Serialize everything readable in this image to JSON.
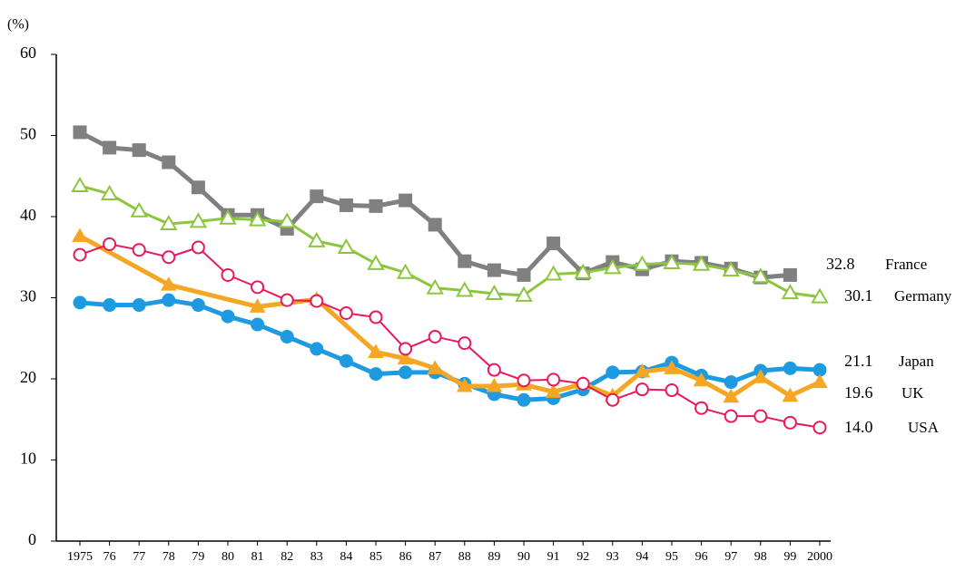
{
  "chart_data": {
    "type": "line",
    "y_label": "(%)",
    "ylim": [
      0,
      60
    ],
    "yticks": [
      0,
      10,
      20,
      30,
      40,
      50,
      60
    ],
    "xlim": [
      1975,
      2000
    ],
    "xticks": [
      1975,
      {
        "value": 1976,
        "label": "76"
      },
      {
        "value": 1977,
        "label": "77"
      },
      {
        "value": 1978,
        "label": "78"
      },
      {
        "value": 1979,
        "label": "79"
      },
      {
        "value": 1980,
        "label": "80"
      },
      {
        "value": 1981,
        "label": "81"
      },
      {
        "value": 1982,
        "label": "82"
      },
      {
        "value": 1983,
        "label": "83"
      },
      {
        "value": 1984,
        "label": "84"
      },
      {
        "value": 1985,
        "label": "85"
      },
      {
        "value": 1986,
        "label": "86"
      },
      {
        "value": 1987,
        "label": "87"
      },
      {
        "value": 1988,
        "label": "88"
      },
      {
        "value": 1989,
        "label": "89"
      },
      {
        "value": 1990,
        "label": "90"
      },
      {
        "value": 1991,
        "label": "91"
      },
      {
        "value": 1992,
        "label": "92"
      },
      {
        "value": 1993,
        "label": "93"
      },
      {
        "value": 1994,
        "label": "94"
      },
      {
        "value": 1995,
        "label": "95"
      },
      {
        "value": 1996,
        "label": "96"
      },
      {
        "value": 1997,
        "label": "97"
      },
      {
        "value": 1998,
        "label": "98"
      },
      {
        "value": 1999,
        "label": "99"
      },
      2000
    ],
    "grid": false,
    "series": [
      {
        "name": "France",
        "color": "#808080",
        "marker": "square",
        "filled": true,
        "x": [
          1975,
          1976,
          1977,
          1978,
          1979,
          1980,
          1981,
          1982,
          1983,
          1984,
          1985,
          1986,
          1987,
          1988,
          1989,
          1990,
          1991,
          1992,
          1993,
          1994,
          1995,
          1996,
          1997,
          1998,
          1999
        ],
        "values": [
          50.4,
          48.5,
          48.2,
          46.7,
          43.6,
          40.2,
          40.2,
          38.5,
          42.5,
          41.4,
          41.3,
          42.0,
          39.0,
          34.5,
          33.4,
          32.8,
          36.7,
          33.0,
          34.4,
          33.5,
          34.5,
          34.3,
          33.6,
          32.5,
          32.8
        ]
      },
      {
        "name": "Germany",
        "color": "#8cc63f",
        "marker": "triangle",
        "filled": false,
        "x": [
          1975,
          1976,
          1977,
          1978,
          1979,
          1980,
          1981,
          1982,
          1983,
          1984,
          1985,
          1986,
          1987,
          1988,
          1989,
          1990,
          1991,
          1992,
          1993,
          1994,
          1995,
          1996,
          1997,
          1998,
          1999,
          2000
        ],
        "values": [
          43.8,
          42.8,
          40.7,
          39.1,
          39.4,
          39.8,
          39.6,
          39.4,
          37.0,
          36.2,
          34.2,
          33.1,
          31.2,
          30.9,
          30.5,
          30.3,
          32.9,
          33.1,
          33.7,
          34.1,
          34.3,
          34.1,
          33.4,
          32.6,
          30.6,
          30.1
        ]
      },
      {
        "name": "Japan",
        "color": "#1e9be0",
        "marker": "circle",
        "filled": true,
        "x": [
          1975,
          1976,
          1977,
          1978,
          1979,
          1980,
          1981,
          1982,
          1983,
          1984,
          1985,
          1986,
          1987,
          1988,
          1989,
          1990,
          1991,
          1992,
          1993,
          1994,
          1995,
          1996,
          1997,
          1998,
          1999,
          2000
        ],
        "values": [
          29.4,
          29.1,
          29.1,
          29.7,
          29.1,
          27.7,
          26.7,
          25.2,
          23.7,
          22.2,
          20.6,
          20.8,
          20.8,
          19.4,
          18.1,
          17.4,
          17.6,
          18.7,
          20.8,
          20.9,
          22.0,
          20.4,
          19.6,
          21.0,
          21.3,
          21.1
        ]
      },
      {
        "name": "UK",
        "color": "#f5a623",
        "marker": "triangle",
        "filled": true,
        "x": [
          1975,
          1978,
          1981,
          1983,
          1985,
          1986,
          1987,
          1988,
          1989,
          1990,
          1991,
          1992,
          1993,
          1994,
          1995,
          1996,
          1997,
          1998,
          1999,
          2000
        ],
        "values": [
          37.6,
          31.6,
          28.9,
          29.8,
          23.3,
          22.5,
          21.3,
          19.1,
          19.1,
          19.3,
          18.4,
          19.4,
          17.9,
          20.9,
          21.3,
          19.8,
          17.8,
          20.2,
          17.9,
          19.6
        ]
      },
      {
        "name": "USA",
        "color": "#e8195a",
        "marker": "circle",
        "filled": false,
        "x": [
          1975,
          1976,
          1977,
          1978,
          1979,
          1980,
          1981,
          1982,
          1983,
          1984,
          1985,
          1986,
          1987,
          1988,
          1989,
          1990,
          1991,
          1992,
          1993,
          1994,
          1995,
          1996,
          1997,
          1998,
          1999,
          2000
        ],
        "values": [
          35.3,
          36.6,
          35.9,
          35.0,
          36.2,
          32.8,
          31.3,
          29.7,
          29.6,
          28.1,
          27.6,
          23.7,
          25.2,
          24.4,
          21.1,
          19.8,
          19.9,
          19.4,
          17.4,
          18.7,
          18.6,
          16.4,
          15.4,
          15.4,
          14.6,
          14.0
        ],
        "value_labels": [
          null,
          null,
          null,
          null,
          null,
          null,
          null,
          null,
          null,
          null,
          null,
          null,
          null,
          null,
          null,
          null,
          null,
          null,
          null,
          null,
          null,
          null,
          null,
          null,
          null,
          "14.0"
        ]
      }
    ]
  }
}
